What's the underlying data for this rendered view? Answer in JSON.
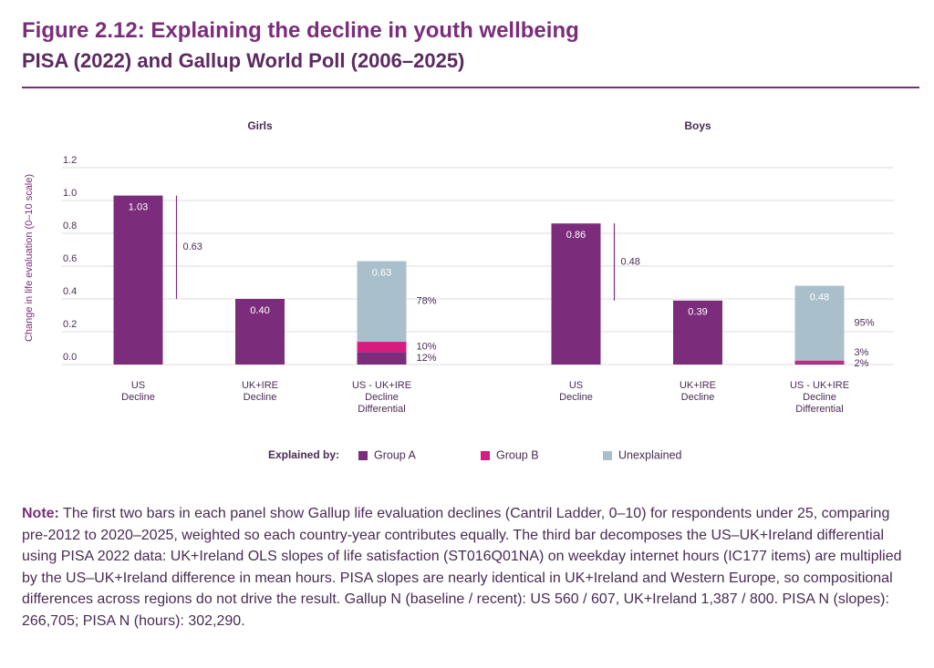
{
  "title": "Figure 2.12: Explaining the decline in youth wellbeing",
  "subtitle": "PISA (2022) and Gallup World Poll (2006–2025)",
  "chart_data": {
    "type": "bar",
    "y_label": "Change in life evaluation (0–10 scale)",
    "ylim": [
      0,
      1.2
    ],
    "yticks": [
      {
        "value": 0,
        "label": "0.0"
      },
      0.2,
      0.4,
      0.6,
      0.8,
      {
        "value": 1,
        "label": "1.0"
      },
      1.2
    ],
    "grid": true,
    "legend": {
      "title": "Explained by:",
      "items": [
        {
          "name": "Group A",
          "color": "#7b2d7b"
        },
        {
          "name": "Group B",
          "color": "#d81b7f"
        },
        {
          "name": "Unexplained",
          "color": "#a9bfcc"
        }
      ]
    },
    "panels": [
      {
        "title": "Girls",
        "categories": [
          [
            "US",
            "Decline"
          ],
          [
            "UK+IRE",
            "Decline"
          ],
          [
            "US - UK+IRE",
            "Decline",
            "Differential"
          ]
        ],
        "values": [
          1.03,
          0.4,
          0.63
        ],
        "value_labels": [
          "1.03",
          "0.40",
          "0.63"
        ],
        "gap": 0.63,
        "shares": [
          12,
          10,
          78
        ],
        "share_labels": [
          "12%",
          "10%",
          "78%"
        ]
      },
      {
        "title": "Boys",
        "categories": [
          [
            "US",
            "Decline"
          ],
          [
            "UK+IRE",
            "Decline"
          ],
          [
            "US - UK+IRE",
            "Decline",
            "Differential"
          ]
        ],
        "values": [
          0.86,
          0.39,
          0.48
        ],
        "value_labels": [
          "0.86",
          "0.39",
          "0.48"
        ],
        "gap": 0.48,
        "shares": [
          2,
          3,
          95
        ],
        "share_labels": [
          "2%",
          "3%",
          "95%"
        ]
      }
    ]
  },
  "note": {
    "label": "Note:",
    "text": "The first two bars in each panel show Gallup life evaluation declines (Cantril Ladder, 0–10) for respondents under 25, comparing pre-2012 to 2020–2025, weighted so each country-year contributes equally. The third bar decomposes the US–UK+Ireland differential using PISA 2022 data: UK+Ireland OLS slopes of life satisfaction (ST016Q01NA) on weekday internet hours (IC177 items) are multiplied by the US–UK+Ireland difference in mean hours. PISA slopes are nearly identical in UK+Ireland and Western Europe, so compositional differences across regions do not drive the result. Gallup N (baseline / recent): US 560 / 607, UK+Ireland 1,387 / 800. PISA N (slopes): 266,705; PISA N (hours): 302,290."
  }
}
